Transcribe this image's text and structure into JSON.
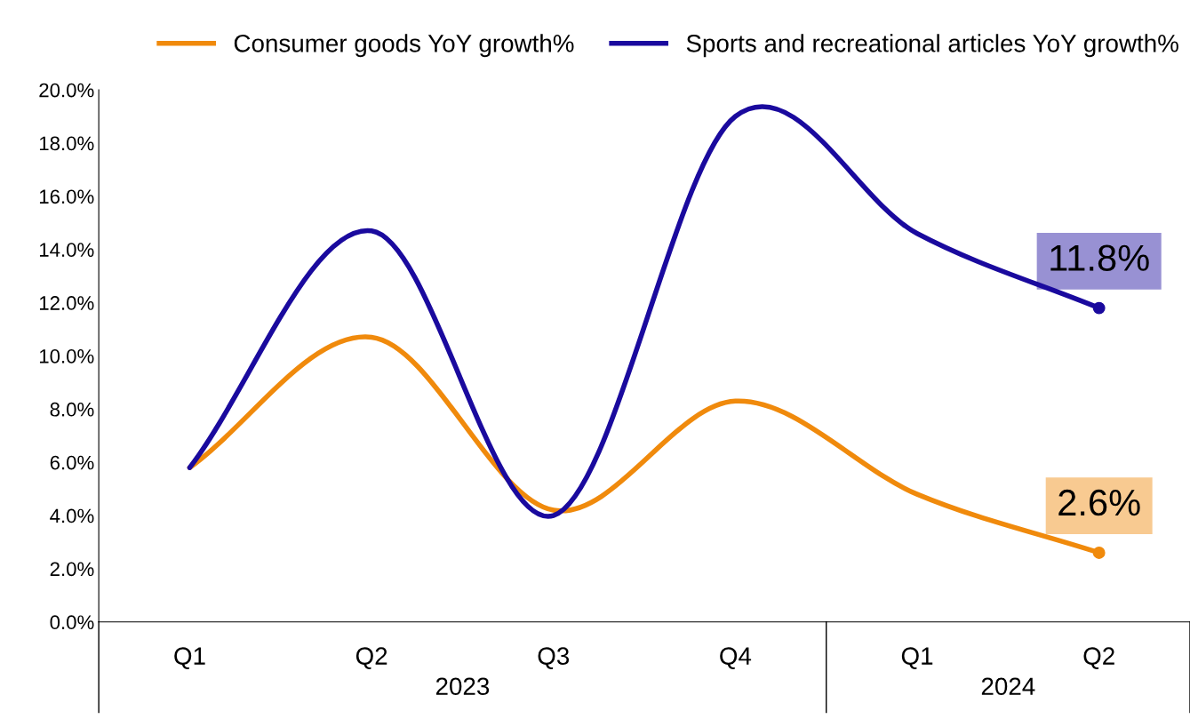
{
  "chart_data": {
    "type": "line",
    "categories": [
      "Q1",
      "Q2",
      "Q3",
      "Q4",
      "Q1",
      "Q2"
    ],
    "series": [
      {
        "name": "Consumer goods YoY growth%",
        "color": "#f08a0c",
        "values": [
          5.8,
          10.7,
          4.2,
          8.3,
          4.8,
          2.6
        ],
        "value_labels": [
          null,
          null,
          null,
          null,
          null,
          "2.6%"
        ]
      },
      {
        "name": "Sports and recreational articles YoY growth%",
        "color": "#1a0a9e",
        "values": [
          5.8,
          14.7,
          4.0,
          19.0,
          14.6,
          11.8
        ],
        "value_labels": [
          null,
          null,
          null,
          null,
          null,
          "11.8%"
        ]
      }
    ],
    "ylim": [
      0,
      20
    ],
    "yticks": [
      {
        "value": 0,
        "label": "0.0%"
      },
      {
        "value": 2,
        "label": "2.0%"
      },
      {
        "value": 4,
        "label": "4.0%"
      },
      {
        "value": 6,
        "label": "6.0%"
      },
      {
        "value": 8,
        "label": "8.0%"
      },
      {
        "value": 10,
        "label": "10.0%"
      },
      {
        "value": 12,
        "label": "12.0%"
      },
      {
        "value": 14,
        "label": "14.0%"
      },
      {
        "value": 16,
        "label": "16.0%"
      },
      {
        "value": 18,
        "label": "18.0%"
      },
      {
        "value": 20,
        "label": "20.0%"
      }
    ],
    "annotations": [
      "2023",
      "2024"
    ],
    "legend": "top",
    "grid": false,
    "line_style": "solid"
  }
}
